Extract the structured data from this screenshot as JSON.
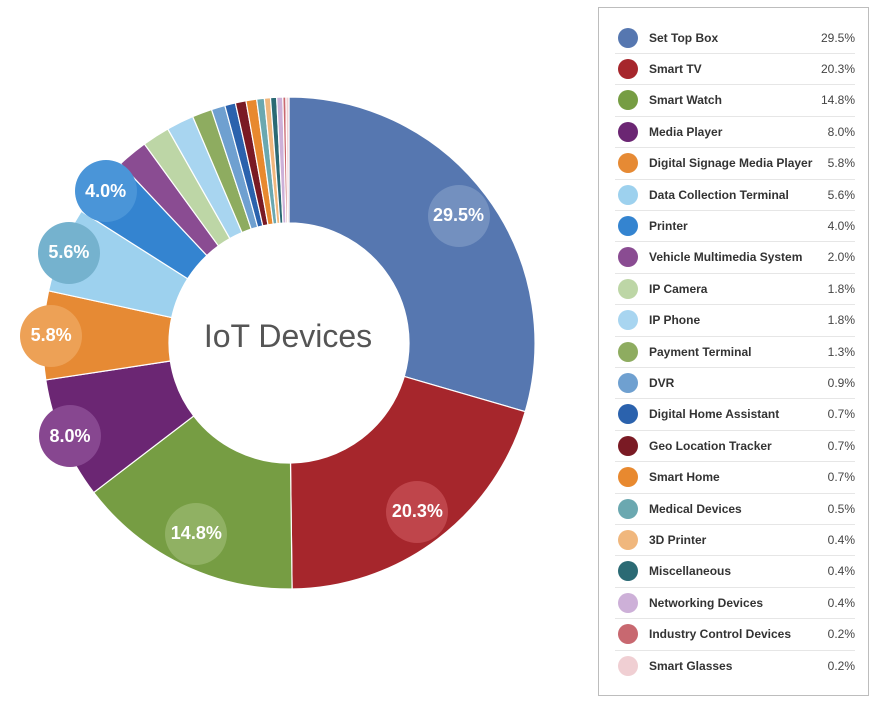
{
  "chart_data": {
    "type": "pie",
    "title": "IoT Devices",
    "unit": "%",
    "slices": [
      {
        "label": "Set Top Box",
        "value": 29.5,
        "display": "29.5%",
        "color": "#5677b0",
        "badge_color": "#7390bf"
      },
      {
        "label": "Smart TV",
        "value": 20.3,
        "display": "20.3%",
        "color": "#a6262c",
        "badge_color": "#bf454b"
      },
      {
        "label": "Smart Watch",
        "value": 14.8,
        "display": "14.8%",
        "color": "#769d43",
        "badge_color": "#90b163"
      },
      {
        "label": "Media Player",
        "value": 8.0,
        "display": "8.0%",
        "color": "#6b2673",
        "badge_color": "#874790"
      },
      {
        "label": "Digital Signage Media Player",
        "value": 5.8,
        "display": "5.8%",
        "color": "#e68a34",
        "badge_color": "#eda156"
      },
      {
        "label": "Data Collection Terminal",
        "value": 5.6,
        "display": "5.6%",
        "color": "#9dd1ee",
        "badge_color": "#75b2ce"
      },
      {
        "label": "Printer",
        "value": 4.0,
        "display": "4.0%",
        "color": "#3484d0",
        "badge_color": "#4a95d8"
      },
      {
        "label": "Vehicle Multimedia System",
        "value": 2.0,
        "display": "2.0%",
        "color": "#8a4c92"
      },
      {
        "label": "IP Camera",
        "value": 1.8,
        "display": "1.8%",
        "color": "#bdd6a6"
      },
      {
        "label": "IP Phone",
        "value": 1.8,
        "display": "1.8%",
        "color": "#a8d5f0"
      },
      {
        "label": "Payment Terminal",
        "value": 1.3,
        "display": "1.3%",
        "color": "#8eac60"
      },
      {
        "label": "DVR",
        "value": 0.9,
        "display": "0.9%",
        "color": "#6fa0d0"
      },
      {
        "label": "Digital Home Assistant",
        "value": 0.7,
        "display": "0.7%",
        "color": "#2b62ad"
      },
      {
        "label": "Geo Location Tracker",
        "value": 0.7,
        "display": "0.7%",
        "color": "#7a1a24"
      },
      {
        "label": "Smart Home",
        "value": 0.7,
        "display": "0.7%",
        "color": "#e8892f"
      },
      {
        "label": "Medical Devices",
        "value": 0.5,
        "display": "0.5%",
        "color": "#6ba8b0"
      },
      {
        "label": "3D Printer",
        "value": 0.4,
        "display": "0.4%",
        "color": "#f0b77d"
      },
      {
        "label": "Miscellaneous",
        "value": 0.4,
        "display": "0.4%",
        "color": "#2b6a74"
      },
      {
        "label": "Networking Devices",
        "value": 0.4,
        "display": "0.4%",
        "color": "#cdb0d8"
      },
      {
        "label": "Industry Control Devices",
        "value": 0.2,
        "display": "0.2%",
        "color": "#c86870"
      },
      {
        "label": "Smart Glasses",
        "value": 0.2,
        "display": "0.2%",
        "color": "#f0cfd3"
      }
    ],
    "legend_position": "right"
  }
}
